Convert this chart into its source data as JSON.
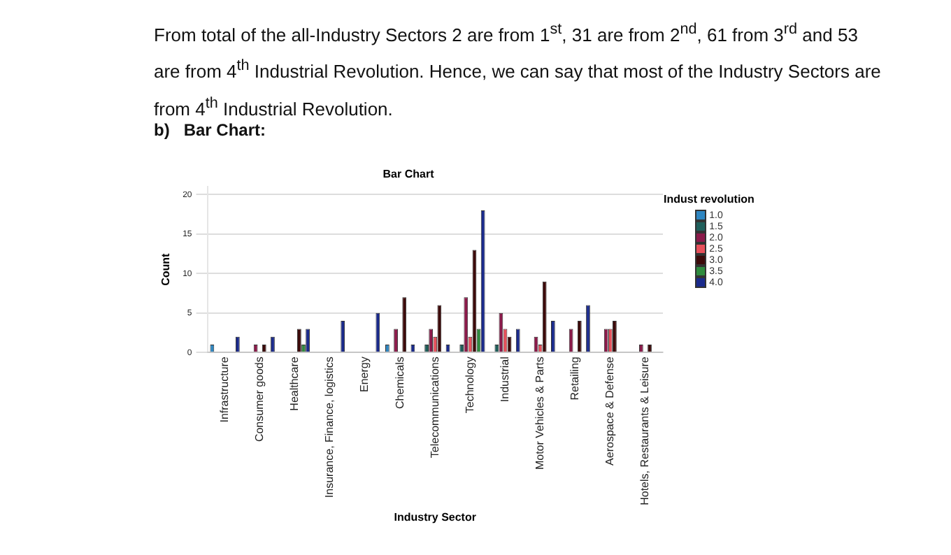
{
  "chart_data": {
    "type": "bar",
    "title": "Bar Chart",
    "xlabel": "Industry Sector",
    "ylabel": "Count",
    "legend_title": "Indust revolution",
    "annotations": [
      "From total of the all-Industry Sectors 2 are from 1$^{st}$, 31 are from 2$^{nd}$, 61 from 3$^{rd}$ and 53 are from 4$^{th}$ Industrial Revolution. Hence, we can say that most of the Industry Sectors are from 4$^{th}$ Industrial Revolution.",
      "b)   Bar Chart:"
    ],
    "categories": [
      "Infrastructure",
      "Consumer goods",
      "Healthcare",
      "Insurance, Finance, logistics",
      "Energy",
      "Chemicals",
      "Telecommunications",
      "Technology",
      "Industrial",
      "Motor Vehicles & Parts",
      "Retailing",
      "Aerospace & Defense",
      "Hotels, Restaurants & Leisure"
    ],
    "series": [
      {
        "name": "1.0",
        "color": "#2e86c1",
        "values": [
          1,
          null,
          null,
          null,
          null,
          1,
          null,
          null,
          null,
          null,
          null,
          null,
          null
        ]
      },
      {
        "name": "1.5",
        "color": "#1f5f5b",
        "values": [
          null,
          null,
          null,
          null,
          null,
          null,
          1,
          1,
          1,
          null,
          null,
          null,
          null
        ]
      },
      {
        "name": "2.0",
        "color": "#8b1a4a",
        "values": [
          null,
          1,
          null,
          null,
          null,
          3,
          3,
          7,
          5,
          2,
          3,
          3,
          1
        ]
      },
      {
        "name": "2.5",
        "color": "#e8505b",
        "values": [
          null,
          null,
          null,
          null,
          null,
          null,
          2,
          2,
          3,
          1,
          null,
          3,
          null
        ]
      },
      {
        "name": "3.0",
        "color": "#3d0a0a",
        "values": [
          null,
          1,
          3,
          null,
          null,
          7,
          6,
          13,
          2,
          9,
          4,
          4,
          1
        ]
      },
      {
        "name": "3.5",
        "color": "#2e8b3e",
        "values": [
          null,
          null,
          1,
          null,
          null,
          null,
          null,
          3,
          null,
          null,
          null,
          null,
          null
        ]
      },
      {
        "name": "4.0",
        "color": "#1a2a8c",
        "values": [
          2,
          2,
          3,
          4,
          5,
          1,
          1,
          18,
          3,
          4,
          6,
          null,
          null
        ]
      }
    ],
    "ylim": [
      0,
      21
    ],
    "yticks": [
      0,
      5,
      10,
      15,
      20
    ],
    "grid": "y",
    "legend": "right"
  }
}
